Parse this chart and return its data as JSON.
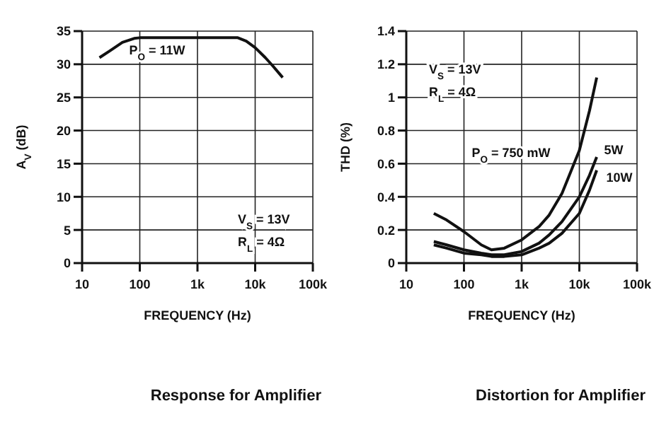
{
  "chart_data": [
    {
      "type": "line",
      "title": "Response for Amplifier",
      "xlabel": "FREQUENCY (Hz)",
      "ylabel": "A$_{V}$ (dB)",
      "log": "x",
      "grid": true,
      "legend": false,
      "color": "#111111",
      "xlim": [
        10,
        100000
      ],
      "xticks": [
        {
          "value": 10,
          "label": "10"
        },
        {
          "value": 100,
          "label": "100"
        },
        {
          "value": 1000,
          "label": "1k"
        },
        {
          "value": 10000,
          "label": "10k"
        },
        {
          "value": 100000,
          "label": "100k"
        }
      ],
      "ylim": [
        0,
        35
      ],
      "yticks": [
        0,
        5,
        10,
        15,
        20,
        25,
        30,
        35
      ],
      "annotations": [
        "V$_{S}$ = 13V",
        "R$_{L}$ = 4Ω"
      ],
      "series": [
        {
          "name": "P$_{O}$ = 11W",
          "color": "#111111",
          "x": [
            20,
            30,
            50,
            80,
            100,
            200,
            500,
            1000,
            2000,
            5000,
            7000,
            10000,
            15000,
            20000,
            30000
          ],
          "values": [
            31,
            32,
            33.3,
            33.9,
            34,
            34,
            34,
            34,
            34,
            34,
            33.5,
            32.5,
            31,
            29.8,
            28
          ]
        }
      ]
    },
    {
      "type": "line",
      "title": "Distortion for Amplifier",
      "xlabel": "FREQUENCY (Hz)",
      "ylabel": "THD (%)",
      "log": "x",
      "grid": true,
      "legend": false,
      "xlim": [
        10,
        100000
      ],
      "xticks": [
        {
          "value": 10,
          "label": "10"
        },
        {
          "value": 100,
          "label": "100"
        },
        {
          "value": 1000,
          "label": "1k"
        },
        {
          "value": 10000,
          "label": "10k"
        },
        {
          "value": 100000,
          "label": "100k"
        }
      ],
      "ylim": [
        0,
        1.4
      ],
      "yticks": [
        0,
        0.2,
        0.4,
        0.6,
        0.8,
        1.0,
        1.2,
        1.4
      ],
      "annotations": [
        "V$_{S}$ = 13V",
        "R$_{L}$ = 4Ω"
      ],
      "series": [
        {
          "name": "P$_{O}$ = 750 mW",
          "color": "#111111",
          "x": [
            30,
            50,
            100,
            200,
            300,
            500,
            1000,
            2000,
            3000,
            5000,
            10000,
            15000,
            20000
          ],
          "values": [
            0.3,
            0.26,
            0.19,
            0.11,
            0.08,
            0.09,
            0.14,
            0.22,
            0.29,
            0.42,
            0.68,
            0.92,
            1.12
          ]
        },
        {
          "name": "5W",
          "color": "#111111",
          "x": [
            30,
            50,
            100,
            200,
            300,
            500,
            1000,
            2000,
            3000,
            5000,
            10000,
            15000,
            20000
          ],
          "values": [
            0.13,
            0.11,
            0.08,
            0.06,
            0.05,
            0.05,
            0.07,
            0.12,
            0.17,
            0.25,
            0.4,
            0.53,
            0.64
          ]
        },
        {
          "name": "10W",
          "color": "#111111",
          "x": [
            30,
            50,
            100,
            200,
            300,
            500,
            1000,
            2000,
            3000,
            5000,
            10000,
            15000,
            20000
          ],
          "values": [
            0.11,
            0.09,
            0.06,
            0.05,
            0.04,
            0.04,
            0.05,
            0.09,
            0.12,
            0.18,
            0.3,
            0.44,
            0.56
          ]
        }
      ]
    }
  ]
}
